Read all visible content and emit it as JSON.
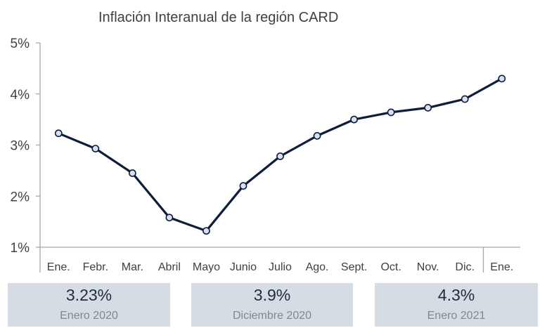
{
  "chart_data": {
    "type": "line",
    "title": "Inflación Interanual de la región CARD",
    "xlabel": "",
    "ylabel": "",
    "categories": [
      "Ene.",
      "Febr.",
      "Mar.",
      "Abril",
      "Mayo",
      "Junio",
      "Julio",
      "Ago.",
      "Sept.",
      "Oct.",
      "Nov.",
      "Dic.",
      "Ene."
    ],
    "series": [
      {
        "values": [
          3.23,
          2.93,
          2.45,
          1.58,
          1.32,
          2.2,
          2.78,
          3.18,
          3.5,
          3.64,
          3.73,
          3.9,
          4.3
        ]
      }
    ],
    "yticks": [
      "1%",
      "2%",
      "3%",
      "4%",
      "5%"
    ],
    "ylim": [
      1,
      5
    ],
    "grid": false,
    "colors": {
      "line": "#0d1d3a",
      "marker_fill": "#d9e1f0"
    }
  },
  "summary_cards": [
    {
      "value": "3.23%",
      "label": "Enero 2020"
    },
    {
      "value": "3.9%",
      "label": "Diciembre 2020"
    },
    {
      "value": "4.3%",
      "label": "Enero 2021"
    }
  ]
}
